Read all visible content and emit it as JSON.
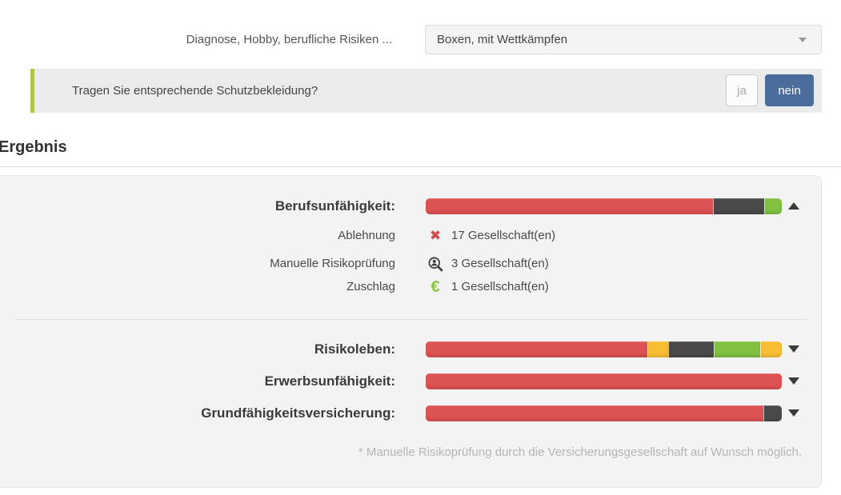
{
  "palette": {
    "red": "#dd5252",
    "dark": "#494949",
    "green": "#80c141",
    "yellow": "#f8bd33",
    "blue": "#4a6d9b",
    "accent_green": "#b2c24c"
  },
  "form": {
    "risk_label": "Diagnose, Hobby, berufliche Risiken ...",
    "risk_select_value": "Boxen, mit Wettkämpfen",
    "question": {
      "text": "Tragen Sie entsprechende Schutzbekleidung?",
      "options": [
        {
          "label": "ja",
          "selected": false
        },
        {
          "label": "nein",
          "selected": true
        }
      ]
    }
  },
  "results": {
    "heading": "Ergebnis",
    "footnote": "* Manuelle Risikoprüfung durch die Versicherungsgesellschaft auf Wunsch möglich.",
    "products": [
      {
        "label": "Berufsunfähigkeit:",
        "expanded": true,
        "segments": [
          {
            "color": "red",
            "percent": 81.0
          },
          {
            "color": "dark",
            "percent": 14.3
          },
          {
            "color": "green",
            "percent": 4.7
          }
        ],
        "details": [
          {
            "label": "Ablehnung",
            "icon": "x-icon",
            "value": "17 Gesellschaft(en)"
          },
          {
            "label": "Manuelle Risikoprüfung",
            "icon": "user-search-icon",
            "value": "3 Gesellschaft(en)"
          },
          {
            "label": "Zuschlag",
            "icon": "euro-icon",
            "value": "1 Gesellschaft(en)"
          }
        ]
      },
      {
        "label": "Risikoleben:",
        "expanded": false,
        "segments": [
          {
            "color": "red",
            "percent": 62.8
          },
          {
            "color": "yellow",
            "percent": 5.6
          },
          {
            "color": "dark",
            "percent": 12.8
          },
          {
            "color": "green",
            "percent": 12.8
          },
          {
            "color": "yellow",
            "percent": 6.0
          }
        ]
      },
      {
        "label": "Erwerbsunfähigkeit:",
        "expanded": false,
        "segments": [
          {
            "color": "red",
            "percent": 100
          }
        ]
      },
      {
        "label": "Grundfähigkeitsversicherung:",
        "expanded": false,
        "segments": [
          {
            "color": "red",
            "percent": 95
          },
          {
            "color": "dark",
            "percent": 5
          }
        ]
      }
    ],
    "icons": {
      "x_glyph": "✖",
      "euro_glyph": "€"
    }
  }
}
